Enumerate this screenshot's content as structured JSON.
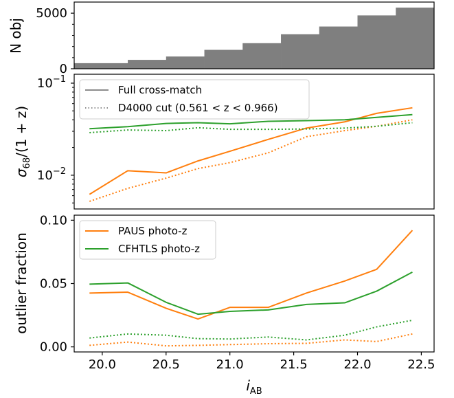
{
  "chart_data": [
    {
      "type": "bar",
      "panel": "top",
      "ylabel": "N obj",
      "yticks": [
        "0",
        "5000"
      ],
      "ylim": [
        0,
        6000
      ],
      "bar_edges": [
        19.78,
        20.2,
        20.5,
        20.8,
        21.1,
        21.4,
        21.7,
        22.0,
        22.3,
        22.6
      ],
      "values": [
        500,
        800,
        1100,
        1700,
        2300,
        3100,
        3800,
        4800,
        5500,
        4900
      ],
      "color": "#7f7f7f"
    },
    {
      "type": "line",
      "panel": "middle",
      "ylabel": "σ68/(1 + z)",
      "ylabel_main": "σ",
      "ylabel_sub": "68",
      "ylabel_tail": "/(1 + z)",
      "yscale": "log",
      "ylim": [
        0.0043,
        0.125
      ],
      "yticks": [
        {
          "base": "10",
          "exp": "−1",
          "value": 0.1
        },
        {
          "base": "10",
          "exp": "−2",
          "value": 0.01
        }
      ],
      "x": [
        19.9,
        20.2,
        20.5,
        20.75,
        21.0,
        21.3,
        21.6,
        21.9,
        22.15,
        22.43
      ],
      "series": [
        {
          "name": "PAUS photo-z",
          "style": "solid",
          "color": "#ff7f0e",
          "values": [
            0.0062,
            0.0112,
            0.0106,
            0.0143,
            0.0182,
            0.0245,
            0.0325,
            0.038,
            0.047,
            0.054
          ]
        },
        {
          "name": "PAUS photo-z",
          "style": "dotted",
          "color": "#ff7f0e",
          "values": [
            0.0052,
            0.0072,
            0.0093,
            0.0118,
            0.0137,
            0.0175,
            0.0262,
            0.0305,
            0.034,
            0.04
          ]
        },
        {
          "name": "CFHTLS photo-z",
          "style": "solid",
          "color": "#2ca02c",
          "values": [
            0.032,
            0.0337,
            0.0365,
            0.0372,
            0.0362,
            0.0385,
            0.0392,
            0.04,
            0.0425,
            0.0455
          ]
        },
        {
          "name": "CFHTLS photo-z",
          "style": "dotted",
          "color": "#2ca02c",
          "values": [
            0.029,
            0.031,
            0.0305,
            0.0328,
            0.0315,
            0.0315,
            0.0318,
            0.0325,
            0.034,
            0.0372
          ]
        }
      ],
      "legend": {
        "placement": "upper-left",
        "entries": [
          {
            "label": "Full cross-match",
            "style": "solid"
          },
          {
            "label": "D4000 cut (0.561 < z < 0.966)",
            "style": "dotted"
          }
        ]
      }
    },
    {
      "type": "line",
      "panel": "bottom",
      "ylabel": "outlier fraction",
      "xlabel": "iAB",
      "xlabel_main": "i",
      "xlabel_sub": "AB",
      "xlim": [
        19.78,
        22.6
      ],
      "xticks": [
        "20.0",
        "20.5",
        "21.0",
        "21.5",
        "22.0",
        "22.5"
      ],
      "ylim": [
        -0.004,
        0.104
      ],
      "yticks": [
        "0.00",
        "0.05",
        "0.10"
      ],
      "x": [
        19.9,
        20.2,
        20.5,
        20.75,
        21.0,
        21.3,
        21.6,
        21.9,
        22.15,
        22.43
      ],
      "series": [
        {
          "name": "PAUS photo-z",
          "style": "solid",
          "color": "#ff7f0e",
          "values": [
            0.0425,
            0.0432,
            0.0305,
            0.022,
            0.0312,
            0.0312,
            0.0425,
            0.052,
            0.0612,
            0.092
          ]
        },
        {
          "name": "PAUS photo-z",
          "style": "dotted",
          "color": "#ff7f0e",
          "values": [
            0.0012,
            0.0038,
            0.0008,
            0.0012,
            0.0018,
            0.0025,
            0.0028,
            0.0055,
            0.0042,
            0.0102
          ]
        },
        {
          "name": "CFHTLS photo-z",
          "style": "solid",
          "color": "#2ca02c",
          "values": [
            0.0495,
            0.0505,
            0.0352,
            0.0258,
            0.028,
            0.0292,
            0.0335,
            0.0348,
            0.044,
            0.059
          ]
        },
        {
          "name": "CFHTLS photo-z",
          "style": "dotted",
          "color": "#2ca02c",
          "values": [
            0.007,
            0.0102,
            0.0092,
            0.0065,
            0.0062,
            0.0078,
            0.0055,
            0.0092,
            0.0158,
            0.021
          ]
        }
      ],
      "legend": {
        "placement": "upper-left",
        "entries": [
          {
            "label": "PAUS photo-z",
            "color": "#ff7f0e"
          },
          {
            "label": "CFHTLS photo-z",
            "color": "#2ca02c"
          }
        ]
      }
    }
  ]
}
